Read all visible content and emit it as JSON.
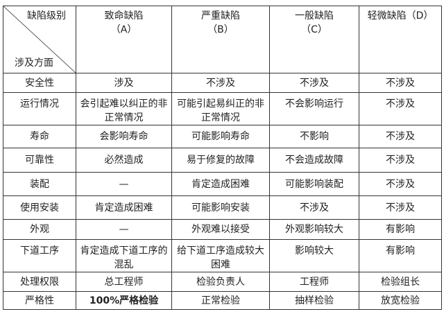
{
  "corner": {
    "top": "缺陷级别",
    "bottom": "涉及方面"
  },
  "columns": [
    {
      "name": "致命缺陷",
      "code": "（A）"
    },
    {
      "name": "严重缺陷",
      "code": "（B）"
    },
    {
      "name": "一般缺陷",
      "code": "（C）"
    },
    {
      "name": "轻微缺陷",
      "code": "（D）"
    }
  ],
  "rows": [
    {
      "aspect": "安全性",
      "cells": [
        "涉及",
        "不涉及",
        "不涉及",
        "不涉及"
      ]
    },
    {
      "aspect": "运行情况",
      "cells": [
        "会引起难以纠正的非正常情况",
        "可能引起易纠正的非正常情况",
        "不会影响运行",
        "不涉及"
      ]
    },
    {
      "aspect": "寿命",
      "cells": [
        "会影响寿命",
        "可能影响寿命",
        "不影响",
        "不涉及"
      ]
    },
    {
      "aspect": "可靠性",
      "cells": [
        "必然造成",
        "易于修复的故障",
        "不会造成故障",
        "不涉及"
      ]
    },
    {
      "aspect": "装配",
      "cells": [
        "—",
        "肯定造成困难",
        "可能影响装配",
        "不涉及"
      ]
    },
    {
      "aspect": "使用安装",
      "cells": [
        "肯定造成困难",
        "可能影响安装",
        "不涉及",
        "不涉及"
      ]
    },
    {
      "aspect": "外观",
      "cells": [
        "—",
        "外观难以接受",
        "外观影响较大",
        "有影响"
      ]
    },
    {
      "aspect": "下道工序",
      "cells": [
        "肯定造成下道工序的混乱",
        "给下道工序造成较大困难",
        "影响较大",
        "有影响"
      ]
    },
    {
      "aspect": "处理权限",
      "cells": [
        "总工程师",
        "检验负责人",
        "工程师",
        "检验组长"
      ]
    },
    {
      "aspect": "严格性",
      "cells": [
        "100%严格检验",
        "正常检验",
        "抽样检验",
        "放宽检验"
      ]
    }
  ]
}
